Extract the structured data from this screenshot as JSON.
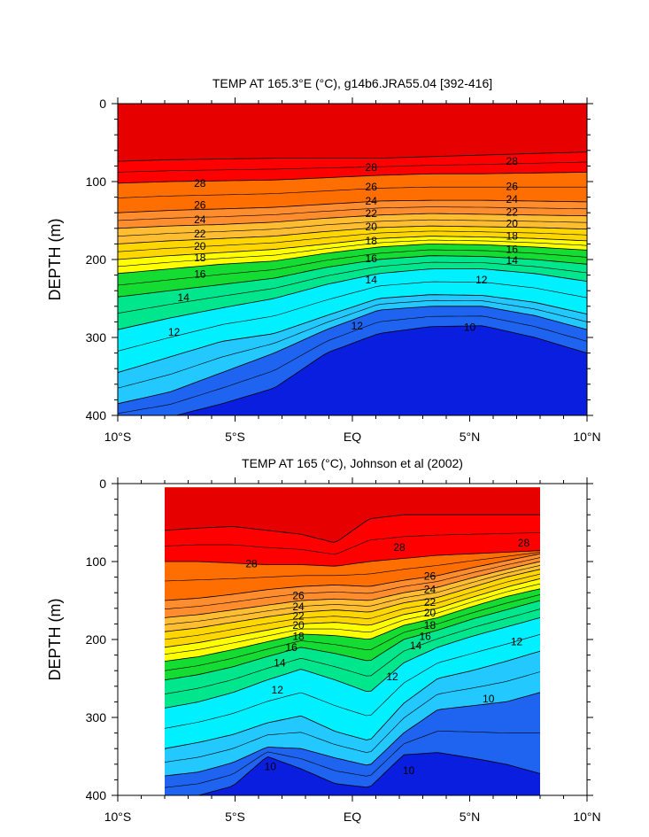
{
  "chart_data": [
    {
      "type": "contour",
      "title": "TEMP AT 165.3°E (°C), g14b6.JRA55.04 [392-416]",
      "ylabel": "DEPTH (m)",
      "xlabel": "",
      "x_ticks": [
        "10°S",
        "5°S",
        "EQ",
        "5°N",
        "10°N"
      ],
      "y_ticks": [
        "0",
        "100",
        "200",
        "300",
        "400"
      ],
      "xlim": [
        -10,
        10
      ],
      "ylim": [
        400,
        0
      ],
      "y_reversed": true,
      "data_x_range": [
        -10,
        10
      ],
      "contour_interval": 1,
      "colors": [
        "#0a1ee0",
        "#1e64f0",
        "#1e96ff",
        "#23c8ff",
        "#00f0ff",
        "#00f0c8",
        "#00e68c",
        "#14dc32",
        "#8cf000",
        "#ffff00",
        "#ffd700",
        "#ffbe32",
        "#ffaa55",
        "#ff8c2d",
        "#ff6e00",
        "#ff3c00",
        "#ff0000",
        "#e60000"
      ],
      "isotherms": [
        {
          "temp": 10,
          "depths": [
            410,
            402,
            385,
            365,
            320,
            295,
            286,
            285,
            300,
            320
          ]
        },
        {
          "temp": 11,
          "depths": [
            385,
            370,
            345,
            320,
            290,
            265,
            260,
            260,
            272,
            290
          ]
        },
        {
          "temp": 12,
          "depths": [
            345,
            325,
            305,
            295,
            272,
            250,
            245,
            246,
            255,
            270
          ]
        },
        {
          "temp": 14,
          "depths": [
            290,
            275,
            262,
            250,
            232,
            218,
            212,
            212,
            218,
            228
          ]
        },
        {
          "temp": 16,
          "depths": [
            248,
            240,
            232,
            224,
            210,
            200,
            195,
            196,
            200,
            206
          ]
        },
        {
          "temp": 18,
          "depths": [
            218,
            212,
            206,
            202,
            192,
            184,
            180,
            181,
            184,
            188
          ]
        },
        {
          "temp": 20,
          "depths": [
            200,
            195,
            191,
            187,
            180,
            173,
            170,
            171,
            173,
            176
          ]
        },
        {
          "temp": 22,
          "depths": [
            180,
            176,
            173,
            170,
            164,
            159,
            157,
            158,
            159,
            161
          ]
        },
        {
          "temp": 24,
          "depths": [
            160,
            157,
            155,
            152,
            147,
            143,
            141,
            142,
            143,
            144
          ]
        },
        {
          "temp": 26,
          "depths": [
            140,
            137,
            135,
            133,
            129,
            125,
            124,
            124,
            125,
            126
          ]
        },
        {
          "temp": 28,
          "depths": [
            102,
            100,
            99,
            98,
            95,
            92,
            90,
            90,
            89,
            88
          ]
        },
        {
          "temp": 29,
          "depths": [
            74,
            72,
            71,
            70,
            70,
            70,
            68,
            66,
            64,
            62
          ]
        }
      ],
      "contour_labels": [
        {
          "temp": 28,
          "x": -6.5,
          "depth": 102
        },
        {
          "temp": 28,
          "x": 0.8,
          "depth": 82
        },
        {
          "temp": 28,
          "x": 6.8,
          "depth": 74
        },
        {
          "temp": 26,
          "x": -6.5,
          "depth": 130
        },
        {
          "temp": 26,
          "x": 0.8,
          "depth": 107
        },
        {
          "temp": 26,
          "x": 6.8,
          "depth": 106
        },
        {
          "temp": 24,
          "x": -6.5,
          "depth": 149
        },
        {
          "temp": 24,
          "x": 0.8,
          "depth": 125
        },
        {
          "temp": 24,
          "x": 6.8,
          "depth": 123
        },
        {
          "temp": 22,
          "x": -6.5,
          "depth": 167
        },
        {
          "temp": 22,
          "x": 0.8,
          "depth": 141
        },
        {
          "temp": 22,
          "x": 6.8,
          "depth": 139
        },
        {
          "temp": 20,
          "x": -6.5,
          "depth": 183
        },
        {
          "temp": 20,
          "x": 0.8,
          "depth": 158
        },
        {
          "temp": 20,
          "x": 6.8,
          "depth": 154
        },
        {
          "temp": 18,
          "x": -6.5,
          "depth": 198
        },
        {
          "temp": 18,
          "x": 0.8,
          "depth": 176
        },
        {
          "temp": 18,
          "x": 6.8,
          "depth": 170
        },
        {
          "temp": 16,
          "x": -6.5,
          "depth": 219
        },
        {
          "temp": 16,
          "x": 0.8,
          "depth": 199
        },
        {
          "temp": 16,
          "x": 6.8,
          "depth": 187
        },
        {
          "temp": 14,
          "x": -7.2,
          "depth": 249
        },
        {
          "temp": 14,
          "x": 0.8,
          "depth": 226
        },
        {
          "temp": 14,
          "x": 6.8,
          "depth": 201
        },
        {
          "temp": 12,
          "x": -7.6,
          "depth": 293
        },
        {
          "temp": 12,
          "x": 0.2,
          "depth": 285
        },
        {
          "temp": 12,
          "x": 5.5,
          "depth": 226
        },
        {
          "temp": 10,
          "x": 5.0,
          "depth": 287
        }
      ]
    },
    {
      "type": "contour",
      "title": "TEMP AT 165 (°C), Johnson et al (2002)",
      "ylabel": "DEPTH (m)",
      "xlabel": "",
      "x_ticks": [
        "10°S",
        "5°S",
        "EQ",
        "5°N",
        "10°N"
      ],
      "y_ticks": [
        "0",
        "100",
        "200",
        "300",
        "400"
      ],
      "xlim": [
        -10,
        10
      ],
      "ylim": [
        400,
        0
      ],
      "y_reversed": true,
      "data_x_range": [
        -8,
        8
      ],
      "data_y_range": [
        5,
        400
      ],
      "contour_interval": 1,
      "colors": [
        "#0a1ee0",
        "#1e64f0",
        "#1e96ff",
        "#23c8ff",
        "#00f0ff",
        "#00f0c8",
        "#00e68c",
        "#14dc32",
        "#8cf000",
        "#ffff00",
        "#ffd700",
        "#ffbe32",
        "#ffaa55",
        "#ff8c2d",
        "#ff6e00",
        "#ff3c00",
        "#ff0000",
        "#e60000"
      ],
      "isotherms": [
        {
          "temp": 10,
          "depths": [
            405,
            400,
            388,
            350,
            366,
            385,
            390,
            348,
            345,
            352,
            360,
            372
          ]
        },
        {
          "temp": 11,
          "depths": [
            375,
            370,
            358,
            338,
            340,
            352,
            362,
            320,
            290,
            285,
            280,
            268
          ]
        },
        {
          "temp": 12,
          "depths": [
            340,
            332,
            322,
            307,
            298,
            318,
            330,
            282,
            250,
            240,
            228,
            215
          ]
        },
        {
          "temp": 14,
          "depths": [
            288,
            280,
            268,
            252,
            238,
            252,
            268,
            230,
            210,
            196,
            184,
            172
          ]
        },
        {
          "temp": 16,
          "depths": [
            252,
            245,
            235,
            222,
            210,
            218,
            228,
            200,
            188,
            174,
            162,
            150
          ]
        },
        {
          "temp": 18,
          "depths": [
            228,
            222,
            213,
            203,
            193,
            195,
            200,
            182,
            172,
            158,
            145,
            135
          ]
        },
        {
          "temp": 20,
          "depths": [
            210,
            204,
            196,
            188,
            180,
            178,
            182,
            168,
            160,
            146,
            133,
            122
          ]
        },
        {
          "temp": 22,
          "depths": [
            190,
            185,
            178,
            171,
            165,
            162,
            165,
            153,
            146,
            133,
            120,
            110
          ]
        },
        {
          "temp": 24,
          "depths": [
            172,
            168,
            162,
            156,
            150,
            148,
            150,
            140,
            133,
            121,
            110,
            100
          ]
        },
        {
          "temp": 26,
          "depths": [
            150,
            147,
            142,
            136,
            132,
            130,
            132,
            124,
            118,
            108,
            99,
            90
          ]
        },
        {
          "temp": 28,
          "depths": [
            100,
            100,
            102,
            104,
            104,
            106,
            100,
            96,
            92,
            90,
            88,
            86
          ]
        },
        {
          "temp": 29,
          "depths": [
            60,
            57,
            55,
            60,
            65,
            76,
            45,
            40,
            40,
            40,
            40,
            40
          ]
        }
      ],
      "contour_labels": [
        {
          "temp": 28,
          "x": -4.3,
          "depth": 103
        },
        {
          "temp": 28,
          "x": 2.0,
          "depth": 82
        },
        {
          "temp": 28,
          "x": 7.3,
          "depth": 76
        },
        {
          "temp": 26,
          "x": -2.3,
          "depth": 144
        },
        {
          "temp": 26,
          "x": 3.3,
          "depth": 119
        },
        {
          "temp": 24,
          "x": -2.3,
          "depth": 158
        },
        {
          "temp": 24,
          "x": 3.3,
          "depth": 136
        },
        {
          "temp": 22,
          "x": -2.3,
          "depth": 170
        },
        {
          "temp": 22,
          "x": 3.3,
          "depth": 152
        },
        {
          "temp": 20,
          "x": -2.3,
          "depth": 182
        },
        {
          "temp": 20,
          "x": 3.3,
          "depth": 166
        },
        {
          "temp": 18,
          "x": -2.3,
          "depth": 196
        },
        {
          "temp": 18,
          "x": 3.3,
          "depth": 182
        },
        {
          "temp": 16,
          "x": -2.6,
          "depth": 210
        },
        {
          "temp": 16,
          "x": 3.1,
          "depth": 196
        },
        {
          "temp": 14,
          "x": -3.1,
          "depth": 230
        },
        {
          "temp": 14,
          "x": 2.7,
          "depth": 208
        },
        {
          "temp": 12,
          "x": -3.2,
          "depth": 265
        },
        {
          "temp": 12,
          "x": 1.7,
          "depth": 248
        },
        {
          "temp": 12,
          "x": 7.0,
          "depth": 203
        },
        {
          "temp": 10,
          "x": -3.5,
          "depth": 363
        },
        {
          "temp": 10,
          "x": 2.4,
          "depth": 368
        },
        {
          "temp": 10,
          "x": 5.8,
          "depth": 276
        }
      ]
    }
  ]
}
